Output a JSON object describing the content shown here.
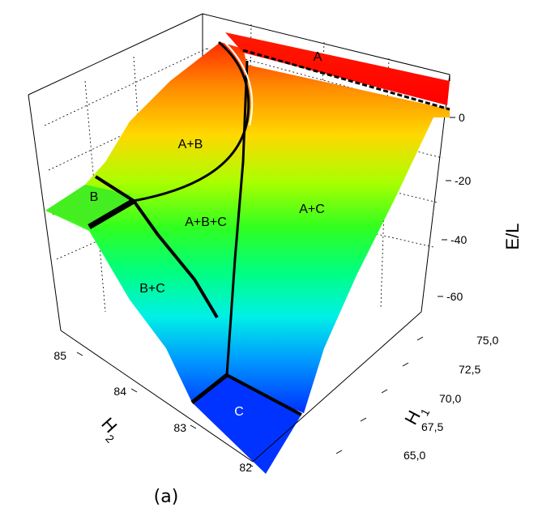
{
  "chart_data": {
    "type": "surface3d",
    "title": "",
    "caption": "(a)",
    "axes": {
      "x": {
        "label_main": "H",
        "label_sub": "1",
        "ticks": [
          "65,0",
          "67,5",
          "70,0",
          "72,5",
          "75,0"
        ]
      },
      "y": {
        "label_main": "H",
        "label_sub": "2",
        "ticks": [
          "82",
          "83",
          "84",
          "85"
        ]
      },
      "z": {
        "label": "E/L",
        "ticks": [
          "0",
          "-20",
          "-40",
          "-60"
        ]
      }
    },
    "regions": [
      "A",
      "A+B",
      "B",
      "A+B+C",
      "A+C",
      "B+C",
      "C"
    ],
    "colormap": [
      "#0018ff",
      "#00e6ff",
      "#00ff55",
      "#b4ff00",
      "#ffd000",
      "#ff5000",
      "#ff0000"
    ],
    "grid": true
  }
}
